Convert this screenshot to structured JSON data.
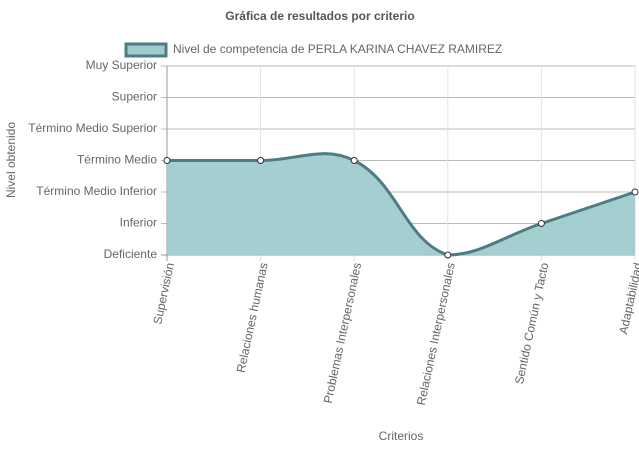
{
  "chart_data": {
    "type": "line",
    "title": "Gráfica de resultados por criterio",
    "x_label": "Criterios",
    "y_label": "Nivel obtenido",
    "categories": [
      "Supervisión",
      "Relaciones humanas",
      "Problemas Interpersonales",
      "Relaciones Interpersonales",
      "Sentido Común y Tacto",
      "Adaptabilidad"
    ],
    "series": [
      {
        "name": "Nivel de competencia de PERLA KARINA CHAVEZ RAMIREZ",
        "color": "#4e7c82",
        "fill": "#9fcbcd",
        "values": [
          3,
          3,
          3,
          0,
          1,
          2
        ]
      }
    ],
    "ylim": [
      0,
      6
    ],
    "yticks": [
      {
        "value": 0,
        "label": "Deficiente"
      },
      {
        "value": 1,
        "label": "Inferior"
      },
      {
        "value": 2,
        "label": "Término Medio Inferior"
      },
      {
        "value": 3,
        "label": "Término Medio"
      },
      {
        "value": 4,
        "label": "Término Medio Superior"
      },
      {
        "value": 5,
        "label": "Superior"
      },
      {
        "value": 6,
        "label": "Muy Superior"
      }
    ],
    "grid": true
  }
}
